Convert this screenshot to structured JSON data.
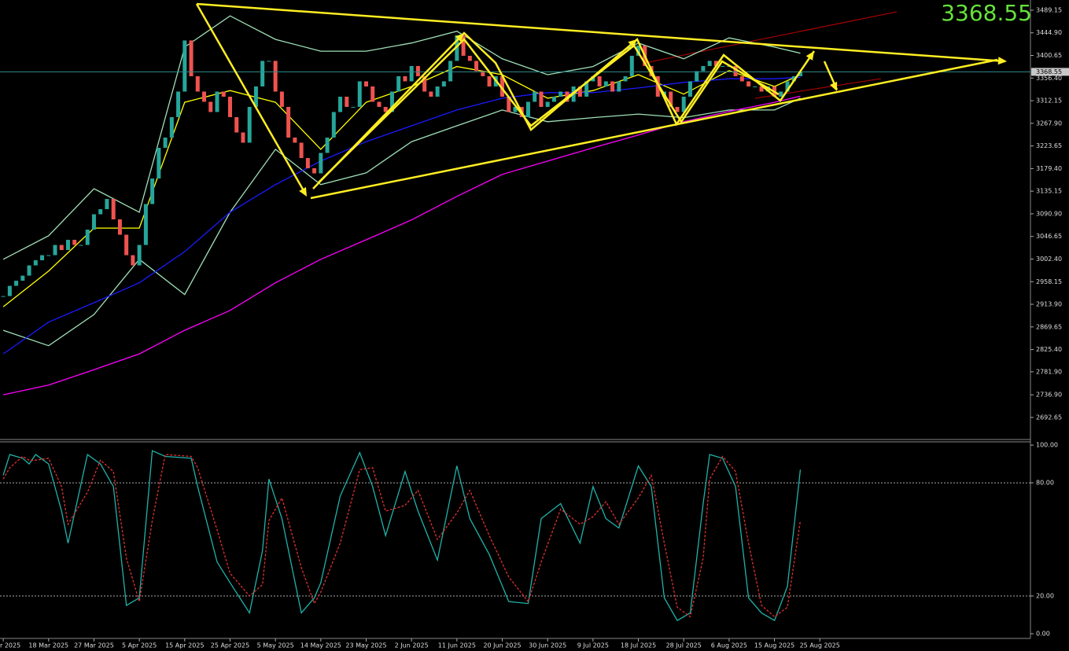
{
  "chart_data": [
    {
      "type": "candlestick",
      "current_price": 3368.55,
      "up_color": "#26a69a",
      "down_color": "#ef5350",
      "xlim": [
        -0.5,
        158.5
      ],
      "xticks": [
        {
          "value": 0,
          "label": "r 2025"
        },
        {
          "value": 7,
          "label": "18 Mar 2025"
        },
        {
          "value": 14,
          "label": "27 Mar 2025"
        },
        {
          "value": 21,
          "label": "5 Apr 2025"
        },
        {
          "value": 28,
          "label": "15 Apr 2025"
        },
        {
          "value": 35,
          "label": "25 Apr 2025"
        },
        {
          "value": 42,
          "label": "5 May 2025"
        },
        {
          "value": 49,
          "label": "14 May 2025"
        },
        {
          "value": 56,
          "label": "23 May 2025"
        },
        {
          "value": 63,
          "label": "2 Jun 2025"
        },
        {
          "value": 70,
          "label": "11 Jun 2025"
        },
        {
          "value": 77,
          "label": "20 Jun 2025"
        },
        {
          "value": 84,
          "label": "30 Jun 2025"
        },
        {
          "value": 91,
          "label": "9 Jul 2025"
        },
        {
          "value": 98,
          "label": "18 Jul 2025"
        },
        {
          "value": 105,
          "label": "28 Jul 2025"
        },
        {
          "value": 112,
          "label": "6 Aug 2025"
        },
        {
          "value": 119,
          "label": "15 Aug 2025"
        },
        {
          "value": 126,
          "label": "25 Aug 2025"
        }
      ],
      "ylim": [
        2651,
        3509.1
      ],
      "yticks": [
        3489.15,
        {
          "value": 3444.9,
          "label": "3444.90"
        },
        3400.65,
        {
          "value": 3356.4,
          "label": "3356.40"
        },
        3312.15,
        {
          "value": 3267.9,
          "label": "3267.90"
        },
        3223.65,
        {
          "value": 3179.4,
          "label": "3179.40"
        },
        3135.15,
        {
          "value": 3090.9,
          "label": "3090.90"
        },
        3046.65,
        {
          "value": 3002.4,
          "label": "3002.40"
        },
        2958.15,
        {
          "value": 2913.9,
          "label": "2913.90"
        },
        2869.65,
        {
          "value": 2825.4,
          "label": "2825.40"
        },
        {
          "value": 2781.9,
          "label": "2781.90"
        },
        {
          "value": 2736.9,
          "label": "2736.90"
        },
        2692.65
      ],
      "close": [
        2930,
        2950,
        2960,
        2970,
        2990,
        3000,
        3010,
        3010,
        3030,
        3020,
        3040,
        3030,
        3030,
        3060,
        3090,
        3100,
        3120,
        3080,
        3050,
        3010,
        2990,
        3030,
        3110,
        3160,
        3220,
        3240,
        3280,
        3330,
        3430,
        3360,
        3330,
        3310,
        3290,
        3330,
        3320,
        3280,
        3250,
        3230,
        3300,
        3340,
        3390,
        3390,
        3330,
        3300,
        3240,
        3230,
        3200,
        3180,
        3170,
        3210,
        3240,
        3290,
        3320,
        3300,
        3300,
        3350,
        3340,
        3310,
        3300,
        3290,
        3330,
        3360,
        3350,
        3380,
        3360,
        3330,
        3320,
        3340,
        3350,
        3390,
        3440,
        3400,
        3390,
        3370,
        3360,
        3340,
        3360,
        3320,
        3290,
        3300,
        3280,
        3310,
        3330,
        3300,
        3310,
        3320,
        3330,
        3310,
        3340,
        3320,
        3350,
        3360,
        3340,
        3350,
        3330,
        3350,
        3360,
        3400,
        3420,
        3380,
        3360,
        3320,
        3330,
        3300,
        3290,
        3320,
        3350,
        3370,
        3380,
        3390,
        3380,
        3380,
        3380,
        3360,
        3350,
        3340,
        3340,
        3330,
        3340,
        3320,
        3330,
        3350,
        3360,
        3368.55
      ],
      "series": [
        {
          "color": "#9fe0b8",
          "x": [
            0,
            7,
            14,
            21,
            28,
            35,
            42,
            49,
            56,
            63,
            70,
            77,
            84,
            91,
            98,
            105,
            112,
            119,
            123
          ],
          "values": [
            3002,
            3048,
            3140,
            3094,
            3417,
            3478,
            3432,
            3409,
            3409,
            3425,
            3448,
            3394,
            3363,
            3379,
            3425,
            3394,
            3435,
            3417,
            3405
          ]
        },
        {
          "color": "#9fe0b8",
          "x": [
            0,
            7,
            14,
            21,
            28,
            35,
            42,
            49,
            56,
            63,
            70,
            77,
            84,
            91,
            98,
            105,
            112,
            119,
            123
          ],
          "values": [
            2863,
            2833,
            2894,
            3002,
            2933,
            3094,
            3217,
            3148,
            3171,
            3232,
            3263,
            3294,
            3271,
            3279,
            3286,
            3279,
            3294,
            3294,
            3317
          ]
        },
        {
          "color": "#ffff00",
          "x": [
            0,
            7,
            14,
            21,
            28,
            35,
            42,
            49,
            56,
            63,
            70,
            77,
            84,
            91,
            98,
            105,
            112,
            119,
            123
          ],
          "values": [
            2909,
            2979,
            3063,
            3063,
            3309,
            3332,
            3309,
            3217,
            3309,
            3340,
            3379,
            3363,
            3317,
            3332,
            3363,
            3325,
            3371,
            3340,
            3363
          ]
        },
        {
          "color": "#1a1aff",
          "x": [
            0,
            7,
            14,
            21,
            28,
            35,
            42,
            49,
            56,
            63,
            70,
            77,
            84,
            91,
            98,
            105,
            112,
            119,
            123
          ],
          "values": [
            2817,
            2879,
            2917,
            2956,
            3017,
            3094,
            3148,
            3194,
            3232,
            3263,
            3294,
            3317,
            3328,
            3328,
            3337,
            3348,
            3355,
            3355,
            3358
          ]
        },
        {
          "color": "#ff00ff",
          "x": [
            0,
            7,
            14,
            21,
            28,
            35,
            42,
            49,
            56,
            63,
            70,
            77,
            84,
            91,
            98,
            105,
            112,
            119,
            123
          ],
          "values": [
            2737,
            2756,
            2786,
            2817,
            2863,
            2902,
            2956,
            3002,
            3040,
            3079,
            3125,
            3168,
            3194,
            3220,
            3245,
            3271,
            3291,
            3309,
            3321
          ]
        }
      ]
    },
    {
      "type": "line",
      "xlim": [
        -0.5,
        158.5
      ],
      "ylim": [
        -2.5,
        101.7
      ],
      "yticks": [
        {
          "value": 100,
          "label": "100.00"
        },
        {
          "value": 80,
          "label": "80.00"
        },
        {
          "value": 20,
          "label": "20.00"
        },
        {
          "value": 0,
          "label": "0.00"
        }
      ],
      "series": [
        {
          "color": "#20b2aa",
          "x": [
            0,
            1,
            3,
            4,
            5,
            7,
            9,
            10,
            13,
            15,
            17,
            19,
            21,
            23,
            25,
            29,
            30,
            33,
            35,
            38,
            40,
            41,
            43,
            46,
            48,
            49,
            52,
            55,
            57,
            59,
            62,
            64,
            67,
            70,
            72,
            75,
            78,
            81,
            83,
            86,
            89,
            91,
            93,
            95,
            98,
            100,
            102,
            104,
            106,
            108,
            109,
            111,
            113,
            115,
            117,
            119,
            121,
            123
          ],
          "values": [
            84,
            95,
            93,
            90,
            95,
            90,
            65,
            48,
            95,
            90,
            78,
            15,
            19,
            97,
            94,
            93,
            78,
            38,
            27,
            11,
            44,
            82,
            61,
            11,
            19,
            27,
            73,
            96,
            78,
            52,
            86,
            65,
            39,
            89,
            61,
            42,
            17,
            16,
            61,
            69,
            48,
            78,
            61,
            56,
            89,
            78,
            19,
            7,
            11,
            69,
            95,
            93,
            78,
            19,
            11,
            7,
            25,
            87
          ]
        },
        {
          "color": "#e03030",
          "dashed": true,
          "x": [
            0,
            1,
            3,
            4,
            5,
            7,
            9,
            10,
            13,
            15,
            17,
            19,
            21,
            23,
            25,
            29,
            30,
            33,
            35,
            38,
            40,
            41,
            43,
            46,
            48,
            49,
            52,
            55,
            57,
            59,
            62,
            64,
            67,
            70,
            72,
            75,
            78,
            81,
            83,
            86,
            89,
            91,
            93,
            95,
            98,
            100,
            102,
            104,
            106,
            108,
            109,
            111,
            113,
            115,
            117,
            119,
            121,
            123
          ],
          "values": [
            82,
            88,
            94,
            92,
            92,
            93,
            78,
            58,
            75,
            92,
            86,
            40,
            17,
            60,
            95,
            94,
            88,
            55,
            32,
            20,
            26,
            60,
            72,
            35,
            16,
            22,
            48,
            87,
            88,
            65,
            68,
            76,
            50,
            64,
            76,
            52,
            30,
            17,
            38,
            66,
            58,
            62,
            70,
            58,
            72,
            84,
            48,
            14,
            9,
            40,
            82,
            94,
            86,
            48,
            15,
            9,
            14,
            60
          ]
        }
      ]
    }
  ]
}
